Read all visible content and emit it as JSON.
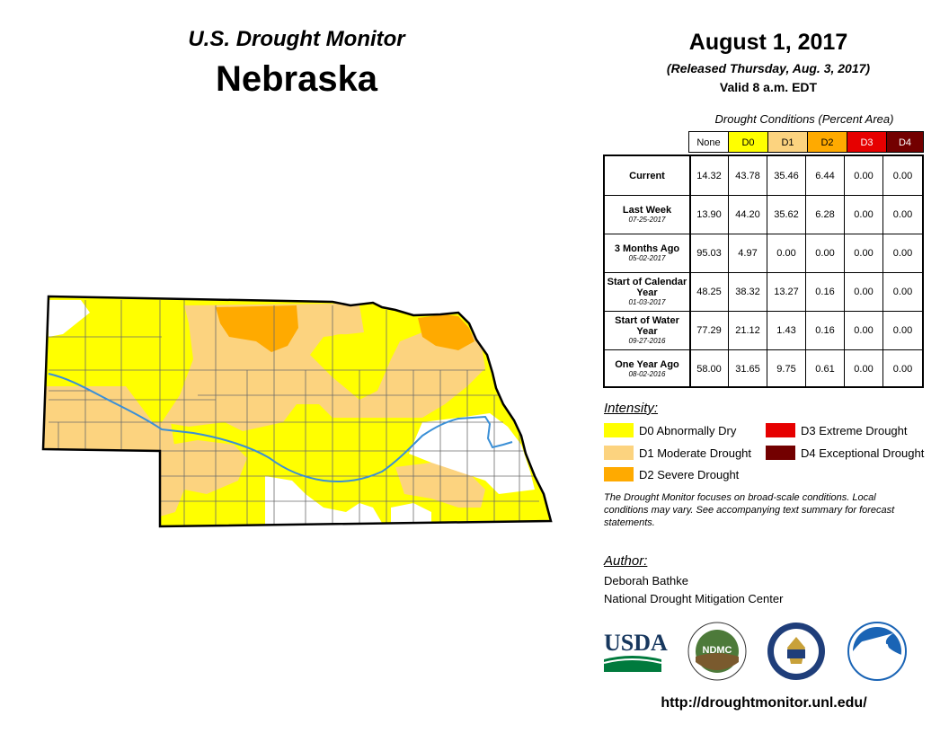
{
  "title": "U.S. Drought Monitor",
  "state": "Nebraska",
  "date": "August 1, 2017",
  "released": "(Released Thursday, Aug. 3, 2017)",
  "valid": "Valid 8 a.m. EDT",
  "table": {
    "title": "Drought Conditions (Percent Area)",
    "headers": [
      "None",
      "D0",
      "D1",
      "D2",
      "D3",
      "D4"
    ],
    "header_colors": [
      "#ffffff",
      "#ffff00",
      "#fcd37f",
      "#ffaa00",
      "#e60000",
      "#730000"
    ],
    "header_text_colors": [
      "#000000",
      "#000000",
      "#000000",
      "#000000",
      "#ffffff",
      "#ffffff"
    ],
    "rows": [
      {
        "label": "Current",
        "date": "",
        "values": [
          "14.32",
          "43.78",
          "35.46",
          "6.44",
          "0.00",
          "0.00"
        ]
      },
      {
        "label": "Last Week",
        "date": "07-25-2017",
        "values": [
          "13.90",
          "44.20",
          "35.62",
          "6.28",
          "0.00",
          "0.00"
        ]
      },
      {
        "label": "3 Months Ago",
        "date": "05-02-2017",
        "values": [
          "95.03",
          "4.97",
          "0.00",
          "0.00",
          "0.00",
          "0.00"
        ]
      },
      {
        "label": "Start of Calendar Year",
        "date": "01-03-2017",
        "values": [
          "48.25",
          "38.32",
          "13.27",
          "0.16",
          "0.00",
          "0.00"
        ]
      },
      {
        "label": "Start of Water Year",
        "date": "09-27-2016",
        "values": [
          "77.29",
          "21.12",
          "1.43",
          "0.16",
          "0.00",
          "0.00"
        ]
      },
      {
        "label": "One Year Ago",
        "date": "08-02-2016",
        "values": [
          "58.00",
          "31.65",
          "9.75",
          "0.61",
          "0.00",
          "0.00"
        ]
      }
    ]
  },
  "legend": {
    "title": "Intensity:",
    "items": [
      {
        "label": "D0 Abnormally Dry",
        "color": "#ffff00"
      },
      {
        "label": "D1 Moderate Drought",
        "color": "#fcd37f"
      },
      {
        "label": "D2 Severe Drought",
        "color": "#ffaa00"
      },
      {
        "label": "D3 Extreme Drought",
        "color": "#e60000"
      },
      {
        "label": "D4 Exceptional Drought",
        "color": "#730000"
      }
    ]
  },
  "note": "The Drought Monitor focuses on broad-scale conditions. Local conditions may vary. See accompanying text summary for forecast statements.",
  "author": {
    "heading": "Author:",
    "name": "Deborah Bathke",
    "org": "National Drought Mitigation Center"
  },
  "logos": {
    "usda": "USDA",
    "ndmc": "NDMC",
    "noaa": "NOAA"
  },
  "url": "http://droughtmonitor.unl.edu/",
  "map": {
    "colors": {
      "none": "#ffffff",
      "d0": "#ffff00",
      "d1": "#fcd37f",
      "d2": "#ffaa00",
      "river": "#3a8fd6",
      "county": "#6b6b6b",
      "border": "#000000"
    }
  }
}
